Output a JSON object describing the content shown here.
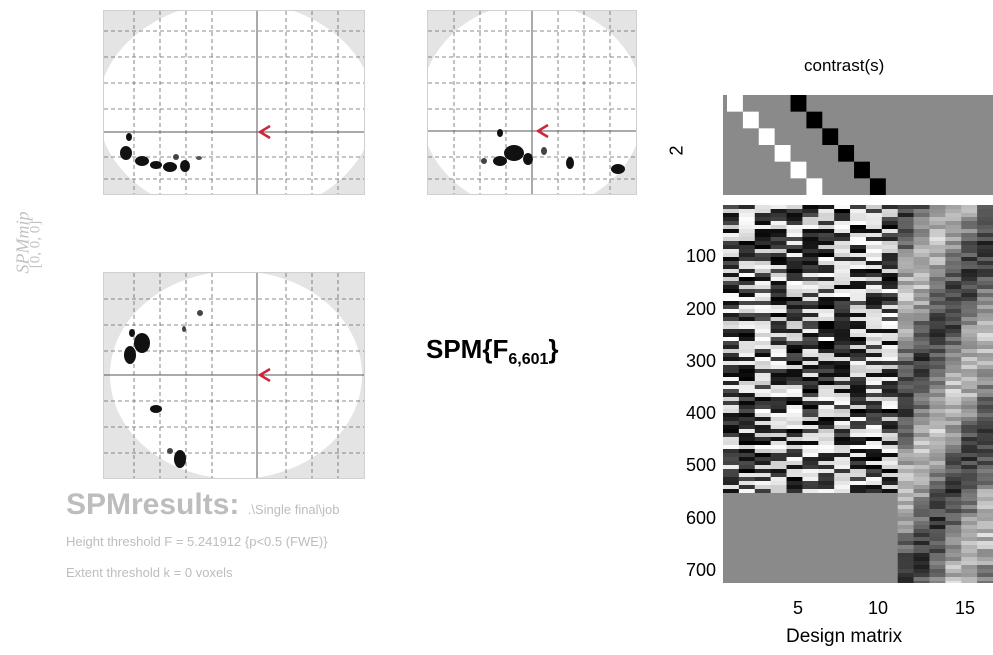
{
  "side_label": {
    "line1": "SPMmip",
    "line2": "[0, 0, 0]"
  },
  "statistic": {
    "prefix": "SPM{F",
    "subscript": "6,601",
    "suffix": "}"
  },
  "results": {
    "title": "SPMresults:",
    "job": ".\\Single final\\job",
    "height_threshold": "Height threshold F = 5.241912  {p<0.5 (FWE)}",
    "extent_threshold": "Extent threshold k = 0 voxels"
  },
  "contrast": {
    "label": "contrast(s)",
    "ytick": "2"
  },
  "design_matrix": {
    "label": "Design matrix",
    "yticks": [
      "100",
      "200",
      "300",
      "400",
      "500",
      "600",
      "700"
    ],
    "xticks": [
      "5",
      "10",
      "15"
    ],
    "n_columns": 17,
    "n_rows": 730
  },
  "colors": {
    "cursor": "#d0263c",
    "mask": "#e4e4e4",
    "grid": "#666666",
    "matrix_bg": "#8a8a8a"
  }
}
